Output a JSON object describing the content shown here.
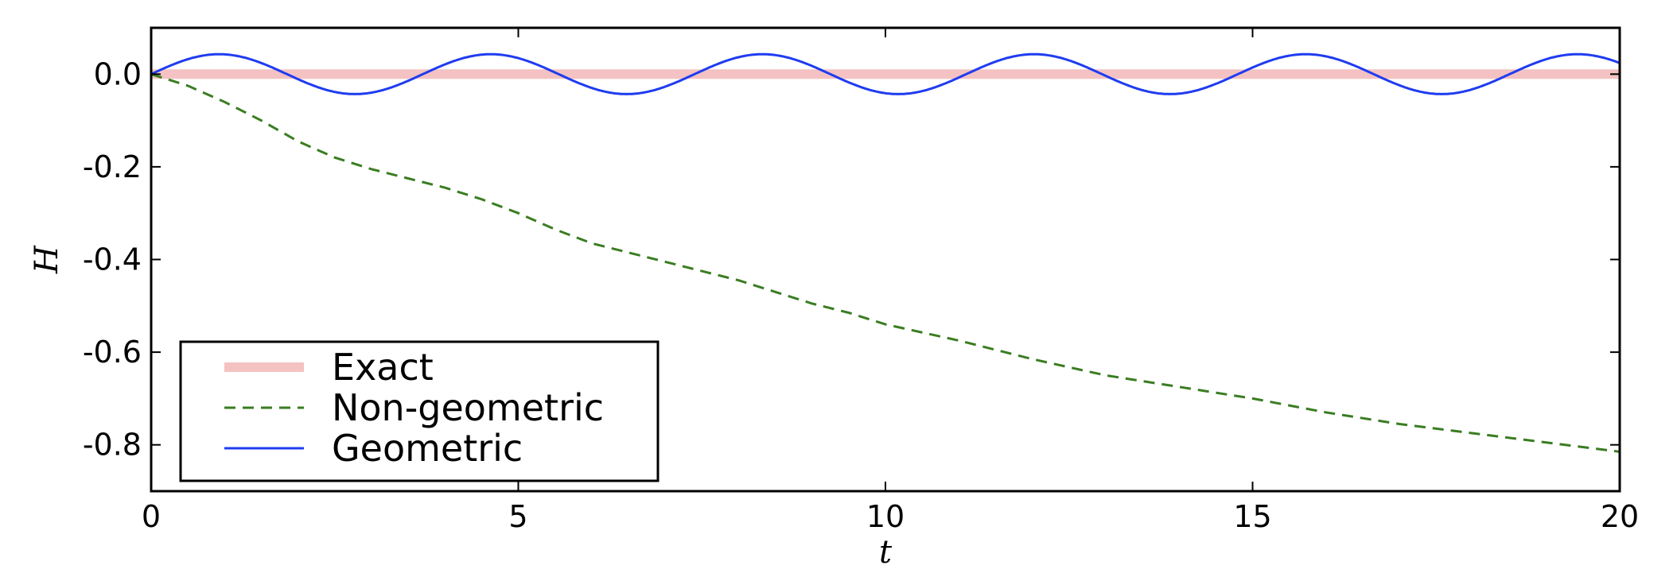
{
  "chart_data": {
    "type": "line",
    "title": "",
    "xlabel": "t",
    "ylabel": "H",
    "xlim": [
      0,
      20
    ],
    "ylim": [
      -0.9,
      0.1
    ],
    "xticks": [
      0,
      5,
      10,
      15,
      20
    ],
    "xtick_labels": [
      "0",
      "5",
      "10",
      "15",
      "20"
    ],
    "yticks": [
      0.0,
      -0.2,
      -0.4,
      -0.6,
      -0.8
    ],
    "ytick_labels": [
      "0.0",
      "-0.2",
      "-0.4",
      "-0.6",
      "-0.8"
    ],
    "grid": false,
    "legend_position": "lower-left",
    "series": [
      {
        "name": "Exact",
        "style": "solid-thick",
        "color": "#f4c2c2",
        "x": [
          0,
          20
        ],
        "y": [
          0.0,
          0.0
        ]
      },
      {
        "name": "Non-geometric",
        "style": "dashed",
        "color": "#3a7d22",
        "x": [
          0,
          0.5,
          1.0,
          1.5,
          2.0,
          2.5,
          3.0,
          3.5,
          4.0,
          4.5,
          5.0,
          5.5,
          6.0,
          6.5,
          7.0,
          7.5,
          8.0,
          8.5,
          9.0,
          9.5,
          10.0,
          11.0,
          12.0,
          13.0,
          14.0,
          15.0,
          16.0,
          17.0,
          18.0,
          19.0,
          20.0
        ],
        "y": [
          0.0,
          -0.025,
          -0.06,
          -0.1,
          -0.145,
          -0.18,
          -0.205,
          -0.225,
          -0.245,
          -0.27,
          -0.3,
          -0.335,
          -0.365,
          -0.385,
          -0.405,
          -0.425,
          -0.445,
          -0.47,
          -0.495,
          -0.515,
          -0.54,
          -0.575,
          -0.615,
          -0.65,
          -0.675,
          -0.7,
          -0.73,
          -0.755,
          -0.775,
          -0.795,
          -0.815
        ]
      },
      {
        "name": "Geometric",
        "style": "solid",
        "color": "#1f3cf0",
        "amplitude": 0.043,
        "period": 3.7,
        "x_range": [
          0,
          20
        ]
      }
    ]
  }
}
